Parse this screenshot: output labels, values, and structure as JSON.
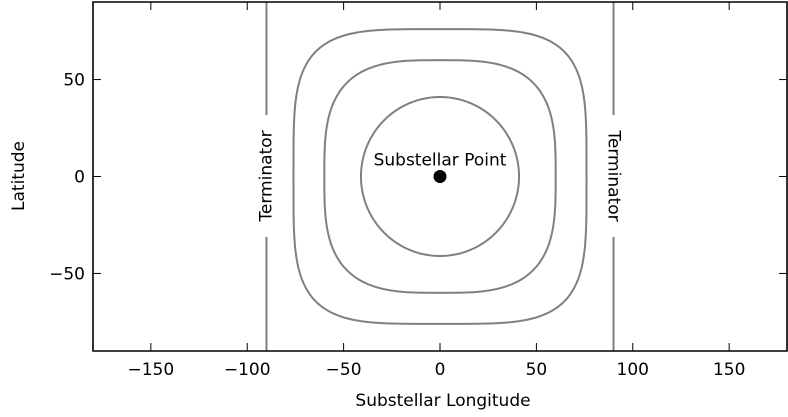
{
  "chart_data": {
    "type": "line",
    "xlabel": "Substellar Longitude",
    "ylabel": "Latitude",
    "xlim": [
      -180,
      180
    ],
    "ylim": [
      -90,
      90
    ],
    "x_ticks": [
      -150,
      -100,
      -50,
      0,
      50,
      100,
      150
    ],
    "y_ticks": [
      -50,
      0,
      50
    ],
    "x_tick_labels": [
      "−150",
      "−100",
      "−50",
      "0",
      "50",
      "100",
      "150"
    ],
    "y_tick_labels": [
      "−50",
      "0",
      "50"
    ],
    "grid": false,
    "line_color": "#808080",
    "point_color": "#000000",
    "contours": [
      {
        "radius": 41,
        "shape": "circle"
      },
      {
        "radius": 60,
        "shape": "rounded-square"
      },
      {
        "radius": 76,
        "shape": "rounded-square"
      }
    ],
    "terminators": [
      {
        "x": -90,
        "label": "Terminator",
        "rotation": "ccw"
      },
      {
        "x": 90,
        "label": "Terminator",
        "rotation": "cw"
      }
    ],
    "substellar_point": {
      "x": 0,
      "y": 0,
      "label": "Substellar Point"
    }
  }
}
